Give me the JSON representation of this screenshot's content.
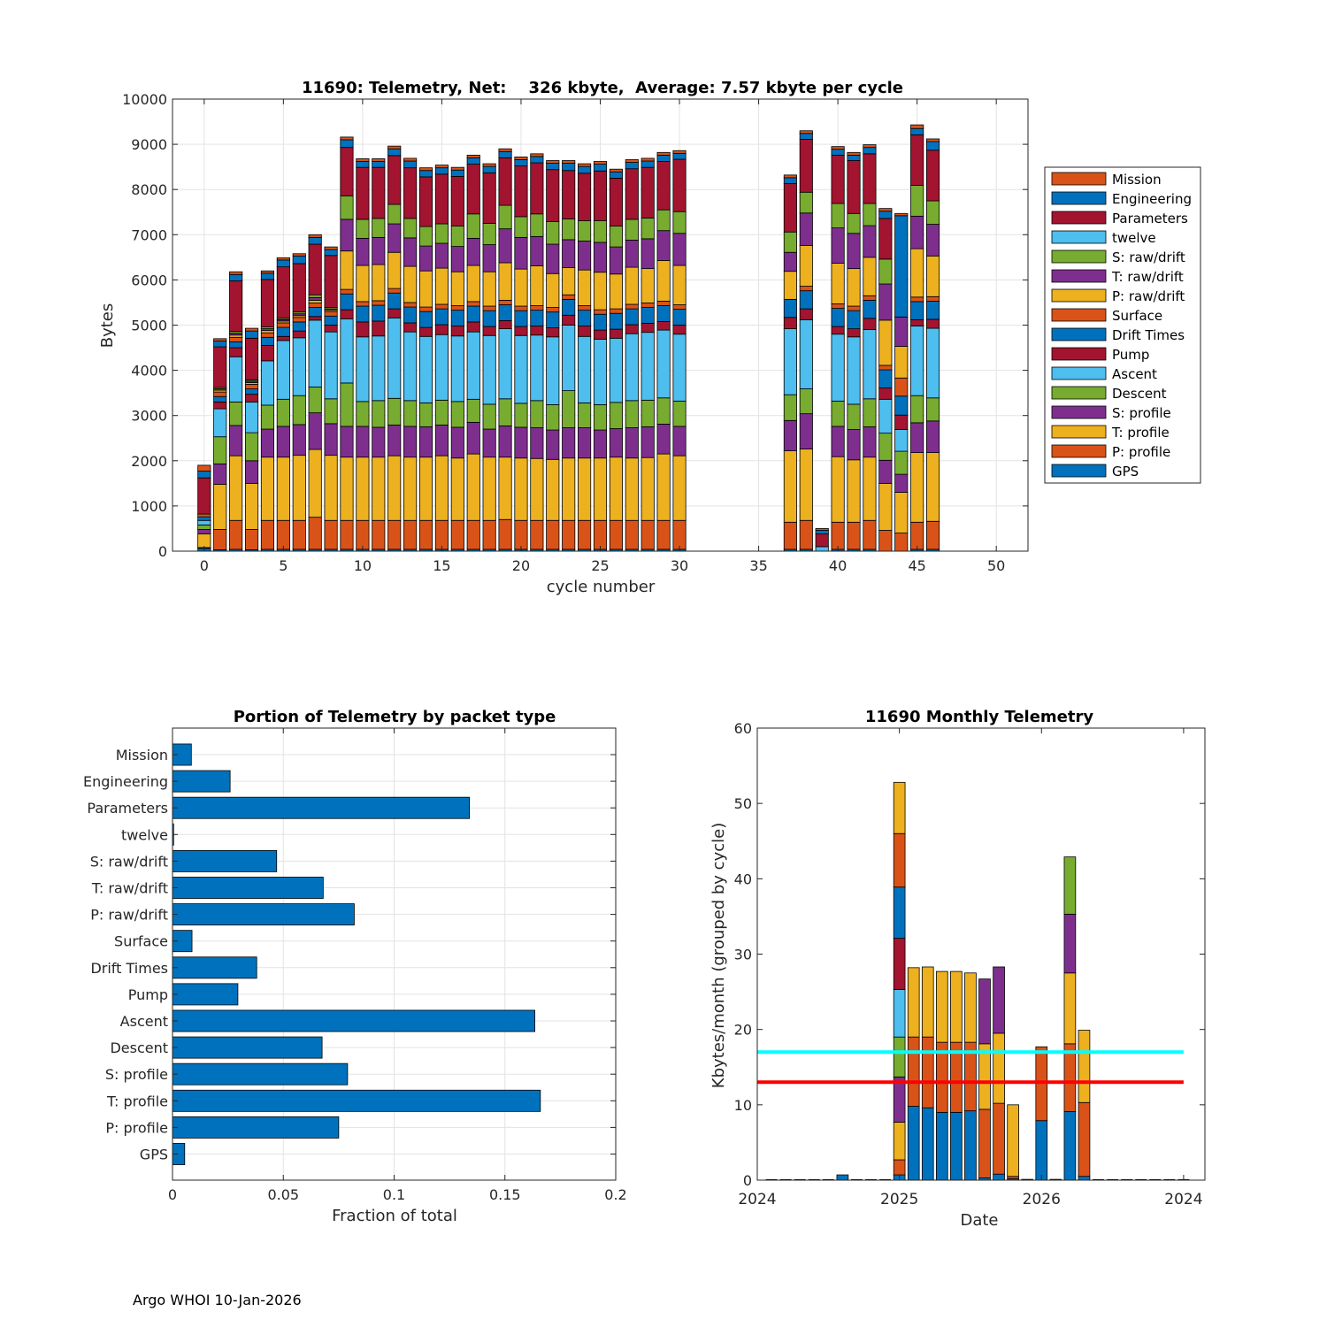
{
  "footer": "Argo WHOI 10-Jan-2026",
  "series_names": [
    "GPS",
    "P: profile",
    "T: profile",
    "S: profile",
    "Descent",
    "Ascent",
    "Pump",
    "Drift Times",
    "Surface",
    "P: raw/drift",
    "T: raw/drift",
    "S: raw/drift",
    "twelve",
    "Parameters",
    "Engineering",
    "Mission"
  ],
  "colors": {
    "GPS": "#0072BD",
    "P: profile": "#D95319",
    "T: profile": "#EDB120",
    "S: profile": "#7E2F8E",
    "Descent": "#77AC30",
    "Ascent": "#4DBEEE",
    "Pump": "#A2142F",
    "Drift Times": "#0072BD",
    "Surface": "#D95319",
    "P: raw/drift": "#EDB120",
    "T: raw/drift": "#7E2F8E",
    "S: raw/drift": "#77AC30",
    "twelve": "#4DBEEE",
    "Parameters": "#A2142F",
    "Engineering": "#0072BD",
    "Mission": "#D95319",
    "barh": "#0072BD",
    "line_cyan": "#00FFFF",
    "line_red": "#FF0000"
  },
  "chart_data": [
    {
      "type": "bar",
      "stacked": true,
      "title": "11690: Telemetry, Net:    326 kbyte,  Average: 7.57 kbyte per cycle",
      "xlabel": "cycle number",
      "ylabel": "Bytes",
      "xlim": [
        -2,
        52
      ],
      "ylim": [
        0,
        10000
      ],
      "xticks": [
        0,
        5,
        10,
        15,
        20,
        25,
        30,
        35,
        40,
        45,
        50
      ],
      "yticks": [
        0,
        1000,
        2000,
        3000,
        4000,
        5000,
        6000,
        7000,
        8000,
        9000,
        10000
      ],
      "legend_position": "east-outside",
      "legend_order": [
        "Mission",
        "Engineering",
        "Parameters",
        "twelve",
        "S: raw/drift",
        "T: raw/drift",
        "P: raw/drift",
        "Surface",
        "Drift Times",
        "Pump",
        "Ascent",
        "Descent",
        "S: profile",
        "T: profile",
        "P: profile",
        "GPS"
      ],
      "cycles": [
        {
          "x": 0,
          "values": [
            60,
            20,
            300,
            100,
            100,
            100,
            0,
            80,
            60,
            0,
            0,
            0,
            0,
            800,
            150,
            130
          ]
        },
        {
          "x": 1,
          "values": [
            30,
            450,
            1000,
            450,
            600,
            620,
            150,
            120,
            100,
            40,
            30,
            30,
            0,
            900,
            130,
            50
          ]
        },
        {
          "x": 2,
          "values": [
            40,
            640,
            1430,
            670,
            520,
            1000,
            200,
            130,
            100,
            50,
            40,
            40,
            0,
            1120,
            140,
            60
          ]
        },
        {
          "x": 3,
          "values": [
            30,
            450,
            1020,
            500,
            620,
            680,
            170,
            120,
            100,
            40,
            30,
            30,
            0,
            920,
            160,
            60
          ]
        },
        {
          "x": 4,
          "values": [
            40,
            640,
            1400,
            620,
            530,
            980,
            340,
            180,
            100,
            50,
            40,
            40,
            0,
            1050,
            140,
            50
          ]
        },
        {
          "x": 5,
          "values": [
            40,
            640,
            1400,
            680,
            600,
            1300,
            90,
            200,
            100,
            40,
            30,
            30,
            0,
            1140,
            150,
            50
          ]
        },
        {
          "x": 6,
          "values": [
            40,
            640,
            1440,
            680,
            640,
            1280,
            150,
            200,
            100,
            40,
            40,
            40,
            0,
            1070,
            170,
            50
          ]
        },
        {
          "x": 7,
          "values": [
            40,
            710,
            1500,
            810,
            570,
            1480,
            80,
            200,
            100,
            60,
            60,
            60,
            0,
            1120,
            150,
            60
          ]
        },
        {
          "x": 8,
          "values": [
            40,
            640,
            1440,
            700,
            550,
            1480,
            150,
            200,
            100,
            30,
            30,
            30,
            0,
            1150,
            130,
            60
          ]
        },
        {
          "x": 9,
          "values": [
            40,
            640,
            1400,
            680,
            960,
            1420,
            200,
            350,
            100,
            850,
            700,
            520,
            0,
            1070,
            170,
            60
          ]
        },
        {
          "x": 10,
          "values": [
            40,
            640,
            1400,
            680,
            550,
            1430,
            330,
            350,
            100,
            800,
            600,
            420,
            0,
            1150,
            130,
            60
          ]
        },
        {
          "x": 11,
          "values": [
            40,
            640,
            1400,
            660,
            590,
            1430,
            330,
            350,
            100,
            800,
            600,
            420,
            0,
            1130,
            130,
            60
          ]
        },
        {
          "x": 12,
          "values": [
            40,
            640,
            1430,
            680,
            590,
            1780,
            200,
            350,
            100,
            800,
            630,
            430,
            0,
            1080,
            150,
            60
          ]
        },
        {
          "x": 13,
          "values": [
            40,
            640,
            1400,
            680,
            570,
            1520,
            200,
            350,
            100,
            800,
            630,
            430,
            0,
            1120,
            150,
            60
          ]
        },
        {
          "x": 14,
          "values": [
            40,
            640,
            1400,
            670,
            530,
            1470,
            200,
            350,
            100,
            800,
            550,
            430,
            0,
            1100,
            140,
            60
          ]
        },
        {
          "x": 15,
          "values": [
            40,
            640,
            1430,
            680,
            550,
            1450,
            220,
            350,
            100,
            800,
            550,
            430,
            0,
            1100,
            140,
            60
          ]
        },
        {
          "x": 16,
          "values": [
            40,
            640,
            1380,
            680,
            570,
            1450,
            220,
            350,
            100,
            750,
            560,
            450,
            0,
            1100,
            140,
            60
          ]
        },
        {
          "x": 17,
          "values": [
            40,
            640,
            1470,
            700,
            510,
            1490,
            220,
            350,
            100,
            800,
            600,
            540,
            0,
            1100,
            140,
            60
          ]
        },
        {
          "x": 18,
          "values": [
            40,
            640,
            1400,
            620,
            550,
            1520,
            200,
            350,
            100,
            760,
            600,
            470,
            0,
            1120,
            140,
            60
          ]
        },
        {
          "x": 19,
          "values": [
            40,
            660,
            1380,
            690,
            600,
            1550,
            180,
            350,
            100,
            830,
            750,
            520,
            0,
            1050,
            140,
            60
          ]
        },
        {
          "x": 20,
          "values": [
            40,
            640,
            1380,
            680,
            530,
            1500,
            200,
            350,
            100,
            820,
            700,
            460,
            0,
            1120,
            140,
            60
          ]
        },
        {
          "x": 21,
          "values": [
            40,
            640,
            1370,
            680,
            600,
            1450,
            200,
            350,
            100,
            880,
            650,
            500,
            0,
            1130,
            140,
            60
          ]
        },
        {
          "x": 22,
          "values": [
            40,
            640,
            1350,
            650,
            560,
            1500,
            200,
            350,
            100,
            750,
            650,
            500,
            0,
            1150,
            140,
            60
          ]
        },
        {
          "x": 23,
          "values": [
            40,
            640,
            1380,
            670,
            820,
            1450,
            220,
            350,
            100,
            600,
            620,
            460,
            0,
            1070,
            160,
            60
          ]
        },
        {
          "x": 24,
          "values": [
            40,
            640,
            1380,
            670,
            550,
            1470,
            230,
            350,
            100,
            790,
            640,
            450,
            0,
            1050,
            150,
            60
          ]
        },
        {
          "x": 25,
          "values": [
            40,
            640,
            1380,
            620,
            560,
            1450,
            200,
            350,
            100,
            830,
            660,
            480,
            0,
            1100,
            150,
            60
          ]
        },
        {
          "x": 26,
          "values": [
            40,
            640,
            1400,
            630,
            580,
            1420,
            200,
            350,
            100,
            770,
            600,
            460,
            0,
            1060,
            140,
            60
          ]
        },
        {
          "x": 27,
          "values": [
            40,
            640,
            1380,
            670,
            600,
            1480,
            200,
            350,
            100,
            820,
            600,
            460,
            0,
            1120,
            140,
            60
          ]
        },
        {
          "x": 28,
          "values": [
            40,
            640,
            1390,
            680,
            590,
            1500,
            200,
            350,
            100,
            760,
            660,
            460,
            0,
            1120,
            140,
            60
          ]
        },
        {
          "x": 29,
          "values": [
            40,
            640,
            1470,
            660,
            580,
            1500,
            190,
            350,
            100,
            900,
            660,
            460,
            0,
            1070,
            140,
            60
          ]
        },
        {
          "x": 30,
          "values": [
            40,
            640,
            1430,
            650,
            560,
            1480,
            200,
            350,
            100,
            870,
            710,
            480,
            0,
            1160,
            130,
            60
          ]
        },
        {
          "x": 37,
          "values": [
            40,
            600,
            1580,
            670,
            570,
            1460,
            250,
            400,
            0,
            620,
            420,
            450,
            0,
            1070,
            130,
            60
          ]
        },
        {
          "x": 38,
          "values": [
            40,
            640,
            1580,
            780,
            550,
            1530,
            240,
            400,
            100,
            900,
            720,
            460,
            0,
            1170,
            130,
            60
          ]
        },
        {
          "x": 39,
          "values": [
            0,
            0,
            0,
            0,
            0,
            100,
            0,
            0,
            0,
            0,
            0,
            0,
            0,
            280,
            80,
            40
          ]
        },
        {
          "x": 40,
          "values": [
            40,
            600,
            1450,
            670,
            560,
            1480,
            170,
            400,
            100,
            900,
            780,
            540,
            0,
            1070,
            130,
            60
          ]
        },
        {
          "x": 41,
          "values": [
            40,
            600,
            1380,
            670,
            560,
            1490,
            180,
            400,
            100,
            830,
            780,
            440,
            0,
            1170,
            120,
            60
          ]
        },
        {
          "x": 42,
          "values": [
            40,
            640,
            1400,
            670,
            620,
            1530,
            250,
            400,
            100,
            850,
            700,
            490,
            0,
            1100,
            140,
            60
          ]
        },
        {
          "x": 43,
          "values": [
            0,
            460,
            1040,
            510,
            600,
            750,
            250,
            400,
            100,
            1000,
            800,
            550,
            0,
            900,
            160,
            60
          ]
        },
        {
          "x": 44,
          "values": [
            0,
            400,
            900,
            400,
            510,
            480,
            320,
            420,
            400,
            700,
            650,
            0,
            0,
            0,
            2240,
            50
          ]
        },
        {
          "x": 45,
          "values": [
            40,
            600,
            1540,
            660,
            600,
            1540,
            140,
            400,
            100,
            1070,
            720,
            680,
            0,
            1120,
            140,
            80
          ]
        },
        {
          "x": 46,
          "values": [
            40,
            620,
            1520,
            700,
            510,
            1540,
            200,
            400,
            100,
            900,
            700,
            520,
            0,
            1120,
            190,
            60
          ]
        }
      ]
    },
    {
      "type": "barh",
      "title": "Portion of Telemetry by packet type",
      "xlabel": "Fraction of total",
      "ylabel": "",
      "xlim": [
        0,
        0.2
      ],
      "xticks": [
        0,
        0.05,
        0.1,
        0.15,
        0.2
      ],
      "xtick_labels": [
        "0",
        "0.05",
        "0.1",
        "0.15",
        "0.2"
      ],
      "categories": [
        "Mission",
        "Engineering",
        "Parameters",
        "twelve",
        "S: raw/drift",
        "T: raw/drift",
        "P: raw/drift",
        "Surface",
        "Drift Times",
        "Pump",
        "Ascent",
        "Descent",
        "S: profile",
        "T: profile",
        "P: profile",
        "GPS"
      ],
      "values": [
        0.0085,
        0.026,
        0.134,
        0.0005,
        0.047,
        0.068,
        0.082,
        0.0088,
        0.038,
        0.0295,
        0.1635,
        0.0675,
        0.079,
        0.166,
        0.075,
        0.0055
      ]
    },
    {
      "type": "bar",
      "stacked": true,
      "title": "11690 Monthly Telemetry",
      "xlabel": "Date",
      "ylabel": "Kbytes/month (grouped by cycle)",
      "ylim": [
        0,
        60
      ],
      "yticks": [
        0,
        10,
        20,
        30,
        40,
        50,
        60
      ],
      "xlim": [
        0,
        31.5
      ],
      "xticks": [
        0,
        10,
        20,
        30
      ],
      "xtick_labels": [
        "2024",
        "2025",
        "2026",
        "2024"
      ],
      "hlines": [
        {
          "y": 17,
          "color": "#00FFFF",
          "x_range": [
            0,
            30
          ]
        },
        {
          "y": 13,
          "color": "#FF0000",
          "x_range": [
            0,
            30
          ]
        }
      ],
      "months": [
        {
          "x": 6,
          "segments": [
            0.7
          ]
        },
        {
          "x": 10,
          "segments": [
            0.7,
            2.0,
            5.0,
            6.0,
            5.3,
            6.3,
            6.8,
            6.8,
            7.1,
            6.8
          ]
        },
        {
          "x": 11,
          "segments": [
            9.8,
            9.2,
            9.2
          ]
        },
        {
          "x": 12,
          "segments": [
            9.6,
            9.4,
            9.3
          ]
        },
        {
          "x": 13,
          "segments": [
            9.0,
            9.3,
            9.4
          ]
        },
        {
          "x": 14,
          "segments": [
            9.0,
            9.3,
            9.4
          ]
        },
        {
          "x": 15,
          "segments": [
            9.2,
            9.1,
            9.2
          ]
        },
        {
          "x": 16,
          "segments": [
            0.3,
            9.1,
            8.7,
            8.6
          ]
        },
        {
          "x": 17,
          "segments": [
            0.8,
            9.4,
            9.3,
            8.8
          ]
        },
        {
          "x": 18,
          "segments": [
            0.2,
            0.3,
            9.5
          ]
        },
        {
          "x": 19,
          "segments": [
            0.1
          ]
        },
        {
          "x": 20,
          "segments": [
            7.9,
            9.8
          ]
        },
        {
          "x": 21,
          "segments": [
            0.1
          ]
        },
        {
          "x": 22,
          "segments": [
            9.1,
            9.0,
            9.4,
            7.8,
            7.6
          ]
        },
        {
          "x": 23,
          "segments": [
            0.5,
            9.8,
            9.6
          ]
        }
      ]
    }
  ]
}
